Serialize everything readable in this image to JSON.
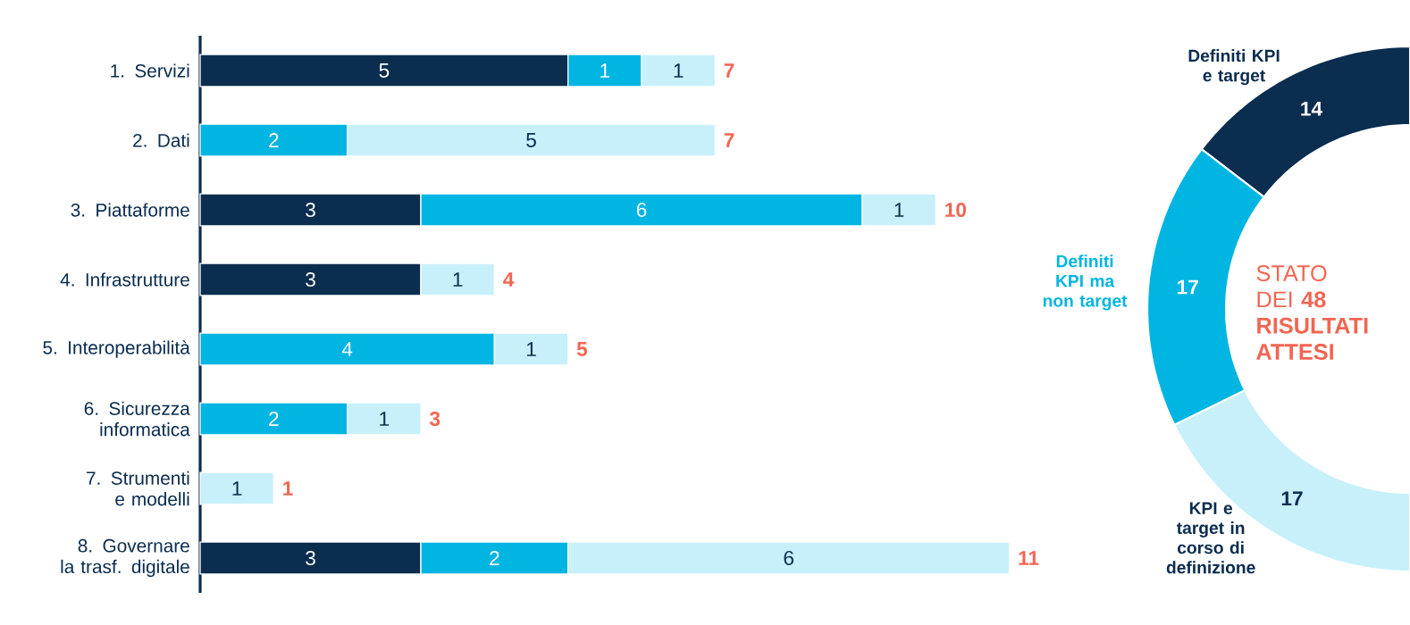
{
  "chart_data": [
    {
      "type": "bar",
      "orientation": "horizontal",
      "stacked": true,
      "categories": [
        "1. Servizi",
        "2. Dati",
        "3. Piattaforme",
        "4. Infrastrutture",
        "5. Interoperabilità",
        "6. Sicurezza informatica",
        "7. Strumenti e modelli",
        "8. Governare la trasf. digitale"
      ],
      "series": [
        {
          "color": "#0b2d4f",
          "values": [
            5,
            null,
            3,
            3,
            null,
            null,
            null,
            3
          ]
        },
        {
          "color": "#00b5e2",
          "values": [
            1,
            2,
            6,
            null,
            4,
            2,
            null,
            2
          ]
        },
        {
          "color": "#c8f0fb",
          "values": [
            1,
            5,
            1,
            1,
            1,
            1,
            1,
            6
          ]
        }
      ],
      "data_labels": true,
      "totals": [
        "7",
        "7",
        "10",
        "4",
        "5",
        "3",
        "1",
        "11"
      ],
      "tick_labels": "y"
    },
    {
      "type": "donut",
      "categories": [
        "Definiti KPI e target",
        "Definiti KPI ma non target",
        "KPI e target in corso di definizione"
      ],
      "values": [
        14,
        17,
        17
      ],
      "colors": [
        "#0b2d4f",
        "#00b5e2",
        "#c8f0fb"
      ],
      "data_labels": true,
      "annotations": [
        "STATO DEI **48 RISULTATI ATTESI**"
      ]
    }
  ]
}
